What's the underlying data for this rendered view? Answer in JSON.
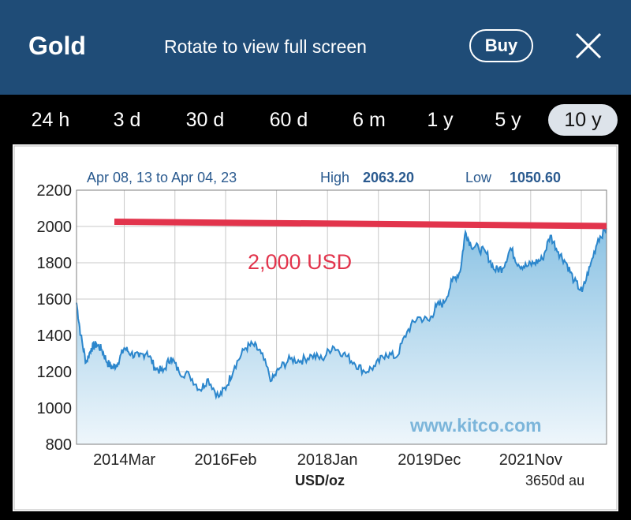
{
  "header": {
    "title": "Gold",
    "rotate_hint": "Rotate to view full screen",
    "buy_label": "Buy",
    "close_icon": "close-icon"
  },
  "tabs": [
    {
      "label": "24 h",
      "active": false
    },
    {
      "label": "3 d",
      "active": false
    },
    {
      "label": "30 d",
      "active": false
    },
    {
      "label": "60 d",
      "active": false
    },
    {
      "label": "6 m",
      "active": false
    },
    {
      "label": "1 y",
      "active": false
    },
    {
      "label": "5 y",
      "active": false
    },
    {
      "label": "10 y",
      "active": true
    }
  ],
  "chart": {
    "range_text": "Apr 08, 13 to Apr 04, 23",
    "high_label": "High",
    "high_value": "2063.20",
    "low_label": "Low",
    "low_value": "1050.60",
    "annotation": "2,000 USD",
    "watermark": "www.kitco.com",
    "unit_label": "USD/oz",
    "span_label": "3650d au"
  },
  "colors": {
    "header_bg": "#1f4c77",
    "line": "#2b86cc",
    "area_top": "#8cc3e4",
    "area_bottom": "#eef6fb",
    "annotation": "#e2344c",
    "watermark": "#7bb5da"
  },
  "chart_data": {
    "type": "area",
    "ylim": [
      800,
      2200
    ],
    "yticks": [
      "2200",
      "2000",
      "1800",
      "1600",
      "1400",
      "1200",
      "1000",
      "800"
    ],
    "xtick_labels": [
      "2014Mar",
      "2016Feb",
      "2018Jan",
      "2019Dec",
      "2021Nov"
    ],
    "xtick_years": [
      2014.17,
      2016.08,
      2018.0,
      2019.92,
      2021.83
    ],
    "xlim": [
      2013.27,
      2023.26
    ],
    "series": [
      {
        "x": [
          2013.27,
          2013.35,
          2013.45,
          2013.55,
          2013.65,
          2013.75,
          2013.85,
          2013.95,
          2014.05,
          2014.17,
          2014.3,
          2014.45,
          2014.6,
          2014.75,
          2014.9,
          2015.05,
          2015.2,
          2015.4,
          2015.6,
          2015.75,
          2015.95,
          2016.1,
          2016.25,
          2016.45,
          2016.6,
          2016.75,
          2016.95,
          2017.1,
          2017.3,
          2017.5,
          2017.7,
          2017.9,
          2018.1,
          2018.3,
          2018.5,
          2018.7,
          2018.9,
          2019.1,
          2019.3,
          2019.5,
          2019.7,
          2019.92,
          2020.05,
          2020.2,
          2020.35,
          2020.5,
          2020.6,
          2020.7,
          2020.85,
          2021.0,
          2021.15,
          2021.3,
          2021.45,
          2021.6,
          2021.75,
          2021.9,
          2022.05,
          2022.2,
          2022.35,
          2022.5,
          2022.65,
          2022.8,
          2022.95,
          2023.1,
          2023.26
        ],
        "values": [
          1580,
          1400,
          1250,
          1330,
          1350,
          1320,
          1250,
          1220,
          1250,
          1330,
          1300,
          1280,
          1310,
          1220,
          1200,
          1280,
          1200,
          1180,
          1100,
          1160,
          1060,
          1120,
          1230,
          1330,
          1350,
          1300,
          1150,
          1220,
          1270,
          1260,
          1290,
          1270,
          1340,
          1300,
          1250,
          1200,
          1230,
          1300,
          1280,
          1420,
          1500,
          1480,
          1560,
          1580,
          1700,
          1750,
          1970,
          1900,
          1880,
          1850,
          1760,
          1770,
          1880,
          1790,
          1780,
          1800,
          1820,
          1950,
          1860,
          1800,
          1700,
          1640,
          1780,
          1930,
          1990
        ]
      }
    ],
    "reference_line": {
      "from": 2000,
      "to": 1985,
      "label": "2,000 USD"
    },
    "grid": true,
    "xlabel": "USD/oz"
  }
}
